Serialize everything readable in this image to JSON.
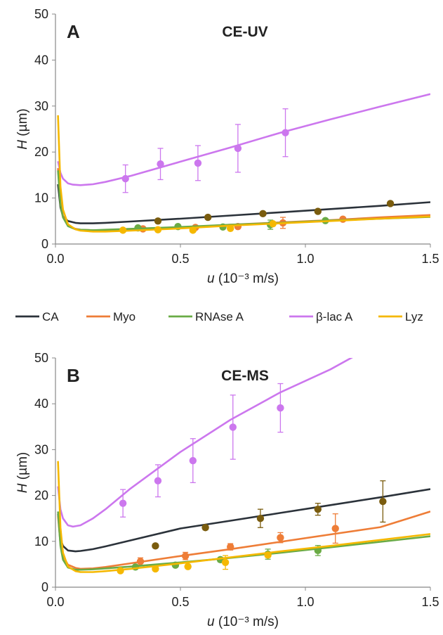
{
  "chart_data": [
    {
      "type": "line",
      "panel": "A",
      "title": "CE-UV",
      "xlabel_italic": "u",
      "xlabel_rest": " (10⁻³ m/s)",
      "ylabel_italic": "H",
      "ylabel_rest": " (µm)",
      "xlim": [
        0,
        1.5
      ],
      "ylim": [
        0,
        50
      ],
      "xticks": [
        "0.0",
        "0.5",
        "1.0",
        "1.5"
      ],
      "yticks": [
        "0",
        "10",
        "20",
        "30",
        "40",
        "50"
      ],
      "grid": false,
      "series": [
        {
          "name": "CA",
          "color": "#2b323a",
          "curve": {
            "x": [
              0.01,
              0.02,
              0.03,
              0.05,
              0.08,
              0.1,
              0.15,
              0.2,
              0.3,
              0.5,
              0.7,
              0.9,
              1.1,
              1.3,
              1.5
            ],
            "y": [
              13.0,
              8.0,
              6.0,
              5.0,
              4.6,
              4.5,
              4.5,
              4.6,
              4.9,
              5.5,
              6.2,
              6.9,
              7.6,
              8.3,
              9.1
            ]
          },
          "points": {
            "x": [
              0.41,
              0.61,
              0.83,
              1.05,
              1.34
            ],
            "y": [
              5.0,
              5.8,
              6.6,
              7.1,
              8.8
            ],
            "err": [
              0.3,
              0.3,
              0.3,
              0.4,
              0.3
            ]
          },
          "point_color": "#7a5c0e"
        },
        {
          "name": "Myo",
          "color": "#ee7d37",
          "curve": {
            "x": [
              0.01,
              0.02,
              0.03,
              0.05,
              0.08,
              0.1,
              0.15,
              0.2,
              0.3,
              0.5,
              0.7,
              0.9,
              1.1,
              1.3,
              1.5
            ],
            "y": [
              16.5,
              9.0,
              6.0,
              4.0,
              3.3,
              3.1,
              3.0,
              3.0,
              3.1,
              3.6,
              4.2,
              4.7,
              5.2,
              5.8,
              6.3
            ]
          },
          "points": {
            "x": [
              0.35,
              0.56,
              0.73,
              0.91,
              1.15
            ],
            "y": [
              3.3,
              3.6,
              3.8,
              4.6,
              5.4
            ],
            "err": [
              0.3,
              0.3,
              0.3,
              1.2,
              0.4
            ]
          },
          "point_color": "#ee7d37"
        },
        {
          "name": "RNAse A",
          "color": "#6aab45",
          "curve": {
            "x": [
              0.01,
              0.02,
              0.03,
              0.05,
              0.08,
              0.1,
              0.15,
              0.2,
              0.3,
              0.5,
              0.7,
              0.9,
              1.1,
              1.3,
              1.5
            ],
            "y": [
              16.0,
              8.5,
              5.8,
              3.9,
              3.2,
              3.1,
              3.0,
              3.1,
              3.3,
              3.7,
              4.2,
              4.6,
              5.1,
              5.5,
              5.9
            ]
          },
          "points": {
            "x": [
              0.33,
              0.49,
              0.67,
              0.86,
              1.08
            ],
            "y": [
              3.5,
              3.8,
              3.7,
              4.2,
              5.1
            ],
            "err": [
              0.3,
              0.3,
              0.3,
              1.0,
              0.4
            ]
          },
          "point_color": "#6aab45"
        },
        {
          "name": "β-lac A",
          "color": "#cc77ee",
          "curve": {
            "x": [
              0.01,
              0.02,
              0.03,
              0.05,
              0.07,
              0.1,
              0.15,
              0.2,
              0.3,
              0.5,
              0.7,
              0.9,
              1.1,
              1.3,
              1.5
            ],
            "y": [
              18.0,
              15.5,
              14.2,
              13.2,
              12.9,
              12.8,
              13.0,
              13.5,
              14.8,
              17.9,
              21.0,
              24.2,
              27.1,
              29.9,
              32.6
            ]
          },
          "points": {
            "x": [
              0.28,
              0.42,
              0.57,
              0.73,
              0.92
            ],
            "y": [
              14.2,
              17.4,
              17.6,
              20.8,
              24.2
            ],
            "err": [
              3.0,
              3.4,
              3.8,
              5.2,
              5.2
            ]
          },
          "point_color": "#cc77ee"
        },
        {
          "name": "Lyz",
          "color": "#f5b800",
          "curve": {
            "x": [
              0.01,
              0.02,
              0.03,
              0.05,
              0.08,
              0.1,
              0.15,
              0.2,
              0.3,
              0.5,
              0.7,
              0.9,
              1.1,
              1.3,
              1.5
            ],
            "y": [
              28.0,
              12.5,
              7.5,
              4.3,
              3.2,
              2.9,
              2.7,
              2.7,
              2.9,
              3.4,
              4.0,
              4.5,
              5.0,
              5.5,
              6.0
            ]
          },
          "points": {
            "x": [
              0.27,
              0.41,
              0.55,
              0.7,
              0.87
            ],
            "y": [
              3.0,
              3.1,
              3.0,
              3.4,
              4.4
            ],
            "err": [
              0.3,
              0.3,
              0.3,
              0.3,
              0.4
            ]
          },
          "point_color": "#f5b800"
        }
      ]
    },
    {
      "type": "line",
      "panel": "B",
      "title": "CE-MS",
      "xlabel_italic": "u",
      "xlabel_rest": " (10⁻³ m/s)",
      "ylabel_italic": "H",
      "ylabel_rest": " (µm)",
      "xlim": [
        0,
        1.5
      ],
      "ylim": [
        0,
        50
      ],
      "xticks": [
        "0.0",
        "0.5",
        "1.0",
        "1.5"
      ],
      "yticks": [
        "0",
        "10",
        "20",
        "30",
        "40",
        "50"
      ],
      "grid": false,
      "series": [
        {
          "name": "CA",
          "color": "#2b323a",
          "curve": {
            "x": [
              0.01,
              0.02,
              0.03,
              0.05,
              0.08,
              0.1,
              0.15,
              0.2,
              0.3,
              0.5,
              0.7,
              0.9,
              1.1,
              1.3,
              1.5
            ],
            "y": [
              16.0,
              10.5,
              9.0,
              8.0,
              7.8,
              7.9,
              8.3,
              8.9,
              10.2,
              12.8,
              14.5,
              16.2,
              17.9,
              19.6,
              21.4
            ]
          },
          "points": {
            "x": [
              0.4,
              0.6,
              0.82,
              1.05,
              1.31
            ],
            "y": [
              9.0,
              13.0,
              15.0,
              17.0,
              18.7
            ],
            "err": [
              0.4,
              0.5,
              2.0,
              1.3,
              4.5
            ]
          },
          "point_color": "#7a5c0e"
        },
        {
          "name": "Myo",
          "color": "#ee7d37",
          "curve": {
            "x": [
              0.01,
              0.02,
              0.03,
              0.05,
              0.08,
              0.1,
              0.15,
              0.2,
              0.3,
              0.5,
              0.7,
              0.9,
              1.1,
              1.3,
              1.5
            ],
            "y": [
              15.5,
              9.5,
              6.8,
              4.9,
              4.2,
              4.0,
              4.1,
              4.4,
              5.2,
              6.8,
              8.3,
              9.9,
              11.5,
              13.1,
              16.5
            ]
          },
          "points": {
            "x": [
              0.34,
              0.52,
              0.7,
              0.9,
              1.12
            ],
            "y": [
              5.6,
              6.8,
              8.8,
              10.8,
              12.8
            ],
            "err": [
              0.8,
              0.8,
              0.7,
              1.1,
              3.2
            ]
          },
          "point_color": "#ee7d37"
        },
        {
          "name": "RNAse A",
          "color": "#6aab45",
          "curve": {
            "x": [
              0.01,
              0.02,
              0.03,
              0.05,
              0.08,
              0.1,
              0.15,
              0.2,
              0.3,
              0.5,
              0.7,
              0.9,
              1.1,
              1.3,
              1.5
            ],
            "y": [
              16.5,
              9.0,
              6.0,
              4.3,
              3.8,
              3.8,
              3.9,
              4.1,
              4.5,
              5.4,
              6.4,
              7.5,
              8.7,
              9.9,
              11.1
            ]
          },
          "points": {
            "x": [
              0.32,
              0.48,
              0.66,
              0.85,
              1.05
            ],
            "y": [
              4.4,
              4.8,
              6.0,
              7.2,
              8.0
            ],
            "err": [
              0.4,
              0.4,
              0.5,
              1.1,
              1.1
            ]
          },
          "point_color": "#6aab45"
        },
        {
          "name": "β-lac A",
          "color": "#cc77ee",
          "curve": {
            "x": [
              0.01,
              0.02,
              0.03,
              0.05,
              0.07,
              0.1,
              0.15,
              0.2,
              0.3,
              0.5,
              0.7,
              0.9,
              1.1,
              1.2
            ],
            "y": [
              22.0,
              17.0,
              15.0,
              13.5,
              13.2,
              13.5,
              15.0,
              17.0,
              21.5,
              29.5,
              36.5,
              42.5,
              47.5,
              50.5
            ]
          },
          "points": {
            "x": [
              0.27,
              0.41,
              0.55,
              0.71,
              0.9
            ],
            "y": [
              18.3,
              23.2,
              27.6,
              34.9,
              39.1
            ],
            "err": [
              3.0,
              3.5,
              4.8,
              7.0,
              5.3
            ]
          },
          "point_color": "#cc77ee"
        },
        {
          "name": "Lyz",
          "color": "#f5b800",
          "curve": {
            "x": [
              0.01,
              0.02,
              0.03,
              0.05,
              0.08,
              0.1,
              0.15,
              0.2,
              0.3,
              0.5,
              0.7,
              0.9,
              1.1,
              1.3,
              1.5
            ],
            "y": [
              27.5,
              13.0,
              7.5,
              4.5,
              3.5,
              3.3,
              3.3,
              3.5,
              4.0,
              5.2,
              6.5,
              7.8,
              9.0,
              10.3,
              11.6
            ]
          },
          "points": {
            "x": [
              0.26,
              0.4,
              0.53,
              0.68,
              0.85
            ],
            "y": [
              3.6,
              4.0,
              4.5,
              5.4,
              7.0
            ],
            "err": [
              0.3,
              0.3,
              0.4,
              1.5,
              0.5
            ]
          },
          "point_color": "#f5b800"
        }
      ]
    }
  ],
  "legend": {
    "placement": "between-panels",
    "entries": [
      {
        "label": "CA",
        "color": "#2b323a"
      },
      {
        "label": "Myo",
        "color": "#ee7d37"
      },
      {
        "label": "RNAse A",
        "color": "#6aab45"
      },
      {
        "label": "β-lac A",
        "color": "#cc77ee"
      },
      {
        "label": "Lyz",
        "color": "#f5b800"
      }
    ]
  }
}
